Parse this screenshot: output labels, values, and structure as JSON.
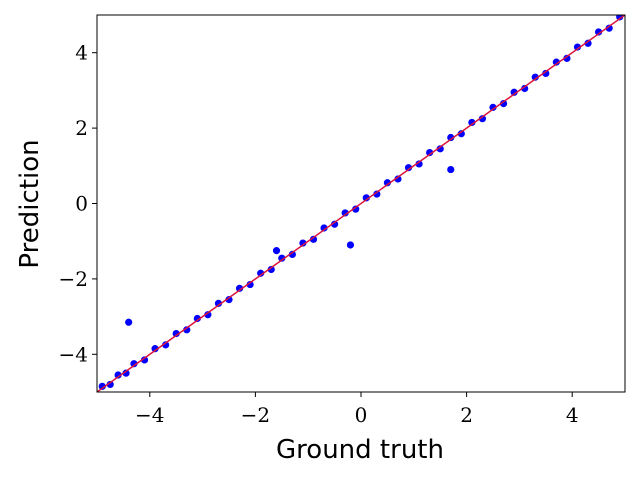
{
  "chart_data": {
    "type": "scatter",
    "x_label": "Ground truth",
    "y_label": "Prediction",
    "xlim": [
      -5,
      5
    ],
    "ylim": [
      -5,
      5
    ],
    "xticks": [
      {
        "value": -4,
        "label": "−4"
      },
      {
        "value": -2,
        "label": "−2"
      },
      0,
      2,
      4
    ],
    "yticks": [
      {
        "value": -4,
        "label": "−4"
      },
      {
        "value": -2,
        "label": "−2"
      },
      0,
      2,
      4
    ],
    "reference_line_color": "#dc143c",
    "series": [
      {
        "color": "#0000ff",
        "x": [
          -4.9,
          -4.75,
          -4.6,
          -4.45,
          -4.3,
          -4.1,
          -3.9,
          -3.7,
          -3.5,
          -3.3,
          -3.1,
          -2.9,
          -2.7,
          -2.5,
          -2.3,
          -2.1,
          -1.9,
          -1.7,
          -1.5,
          -1.3,
          -1.1,
          -0.9,
          -0.7,
          -0.5,
          -0.3,
          -0.1,
          0.1,
          0.3,
          0.5,
          0.7,
          0.9,
          1.1,
          1.3,
          1.5,
          1.7,
          1.9,
          2.1,
          2.3,
          2.5,
          2.7,
          2.9,
          3.1,
          3.3,
          3.5,
          3.7,
          3.9,
          4.1,
          4.3,
          4.5,
          4.7,
          4.9,
          -4.4,
          1.7,
          -0.2,
          -1.6
        ],
        "values": [
          -4.85,
          -4.8,
          -4.55,
          -4.5,
          -4.25,
          -4.15,
          -3.85,
          -3.75,
          -3.45,
          -3.35,
          -3.05,
          -2.95,
          -2.65,
          -2.55,
          -2.25,
          -2.15,
          -1.85,
          -1.75,
          -1.45,
          -1.35,
          -1.05,
          -0.95,
          -0.65,
          -0.55,
          -0.25,
          -0.15,
          0.15,
          0.25,
          0.55,
          0.65,
          0.95,
          1.05,
          1.35,
          1.45,
          1.75,
          1.85,
          2.15,
          2.25,
          2.55,
          2.65,
          2.95,
          3.05,
          3.35,
          3.45,
          3.75,
          3.85,
          4.15,
          4.25,
          4.55,
          4.65,
          4.95,
          -3.15,
          0.9,
          -1.1,
          -1.25
        ]
      }
    ]
  }
}
